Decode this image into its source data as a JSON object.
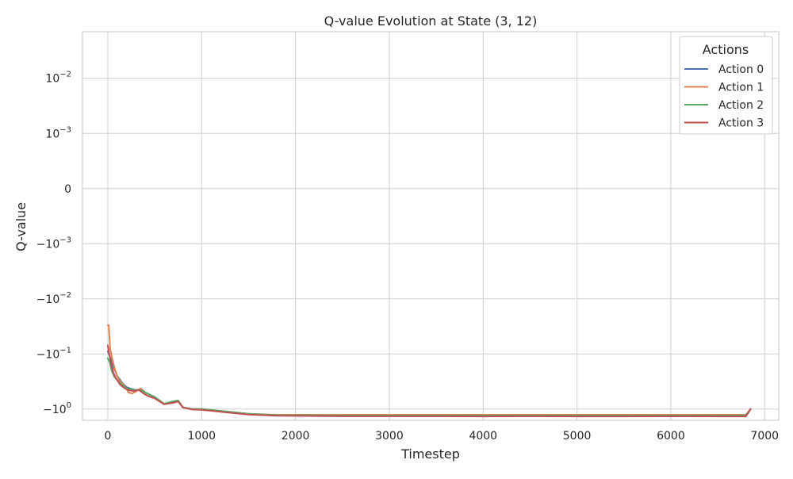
{
  "chart_data": {
    "type": "line",
    "title": "Q-value Evolution at State (3, 12)",
    "xlabel": "Timestep",
    "ylabel": "Q-value",
    "xlim": [
      -270,
      7150
    ],
    "xticks": [
      0,
      1000,
      2000,
      3000,
      4000,
      5000,
      6000,
      7000
    ],
    "y_scale": "symlog",
    "y_linthresh": 0.001,
    "ylim": [
      -1.6,
      0.07
    ],
    "yticks": [
      {
        "value": 0.01,
        "base": "10",
        "exp": "−2",
        "neg": false
      },
      {
        "value": 0.001,
        "base": "10",
        "exp": "−3",
        "neg": false
      },
      {
        "value": 0,
        "text": "0"
      },
      {
        "value": -0.001,
        "base": "10",
        "exp": "−3",
        "neg": true
      },
      {
        "value": -0.01,
        "base": "10",
        "exp": "−2",
        "neg": true
      },
      {
        "value": -0.1,
        "base": "10",
        "exp": "−1",
        "neg": true
      },
      {
        "value": -1,
        "base": "10",
        "exp": "0",
        "neg": true
      }
    ],
    "grid": true,
    "legend": {
      "title": "Actions",
      "placement": "upper right"
    },
    "series": [
      {
        "name": "Action 0",
        "color": "#4c72b0",
        "x": [
          0,
          30,
          60,
          100,
          150,
          200,
          250,
          300,
          350,
          400,
          450,
          500,
          600,
          700,
          750,
          800,
          900,
          1000,
          1200,
          1500,
          1800,
          2000,
          2500,
          3000,
          3500,
          4000,
          4500,
          5000,
          5500,
          6000,
          6500,
          6800,
          6850
        ],
        "y": [
          -0.09,
          -0.12,
          -0.17,
          -0.25,
          -0.33,
          -0.4,
          -0.43,
          -0.45,
          -0.44,
          -0.5,
          -0.55,
          -0.62,
          -0.8,
          -0.75,
          -0.72,
          -0.93,
          -1.0,
          -1.02,
          -1.1,
          -1.25,
          -1.3,
          -1.31,
          -1.33,
          -1.33,
          -1.34,
          -1.34,
          -1.34,
          -1.34,
          -1.35,
          -1.35,
          -1.35,
          -1.35,
          -1.0
        ]
      },
      {
        "name": "Action 1",
        "color": "#dd8452",
        "x": [
          0,
          10,
          25,
          50,
          80,
          120,
          180,
          220,
          260,
          300,
          350,
          400,
          450,
          500,
          600,
          700,
          750,
          800,
          900,
          1000,
          1200,
          1500,
          1800,
          2000,
          2500,
          3000,
          3500,
          4000,
          4500,
          5000,
          5500,
          6000,
          6500,
          6800,
          6850
        ],
        "y": [
          -0.03,
          -0.03,
          -0.08,
          -0.13,
          -0.2,
          -0.3,
          -0.38,
          -0.5,
          -0.52,
          -0.48,
          -0.42,
          -0.5,
          -0.55,
          -0.62,
          -0.8,
          -0.75,
          -0.7,
          -0.93,
          -1.0,
          -1.0,
          -1.08,
          -1.22,
          -1.27,
          -1.27,
          -1.27,
          -1.27,
          -1.27,
          -1.27,
          -1.27,
          -1.27,
          -1.27,
          -1.27,
          -1.27,
          -1.27,
          -1.0
        ]
      },
      {
        "name": "Action 2",
        "color": "#55a868",
        "x": [
          0,
          20,
          40,
          70,
          100,
          150,
          200,
          250,
          300,
          350,
          400,
          450,
          500,
          600,
          700,
          750,
          800,
          900,
          1000,
          1200,
          1500,
          1800,
          2000,
          2500,
          3000,
          3500,
          4000,
          4500,
          5000,
          5500,
          6000,
          6500,
          6800,
          6850
        ],
        "y": [
          -0.12,
          -0.14,
          -0.2,
          -0.26,
          -0.3,
          -0.36,
          -0.42,
          -0.44,
          -0.45,
          -0.45,
          -0.5,
          -0.55,
          -0.6,
          -0.8,
          -0.72,
          -0.7,
          -0.93,
          -1.0,
          -1.0,
          -1.08,
          -1.22,
          -1.29,
          -1.3,
          -1.31,
          -1.31,
          -1.31,
          -1.31,
          -1.31,
          -1.31,
          -1.31,
          -1.31,
          -1.31,
          -1.31,
          -1.0
        ]
      },
      {
        "name": "Action 3",
        "color": "#c44e52",
        "x": [
          0,
          15,
          35,
          60,
          90,
          130,
          180,
          230,
          280,
          330,
          380,
          430,
          500,
          600,
          700,
          750,
          800,
          900,
          1000,
          1200,
          1500,
          1800,
          2000,
          2500,
          3000,
          3500,
          4000,
          4500,
          5000,
          5500,
          6000,
          6500,
          6800,
          6850
        ],
        "y": [
          -0.07,
          -0.1,
          -0.15,
          -0.22,
          -0.28,
          -0.36,
          -0.42,
          -0.46,
          -0.47,
          -0.45,
          -0.52,
          -0.58,
          -0.64,
          -0.82,
          -0.77,
          -0.73,
          -0.94,
          -1.02,
          -1.03,
          -1.12,
          -1.26,
          -1.32,
          -1.33,
          -1.35,
          -1.35,
          -1.35,
          -1.36,
          -1.35,
          -1.36,
          -1.36,
          -1.35,
          -1.36,
          -1.36,
          -1.0
        ]
      }
    ]
  }
}
